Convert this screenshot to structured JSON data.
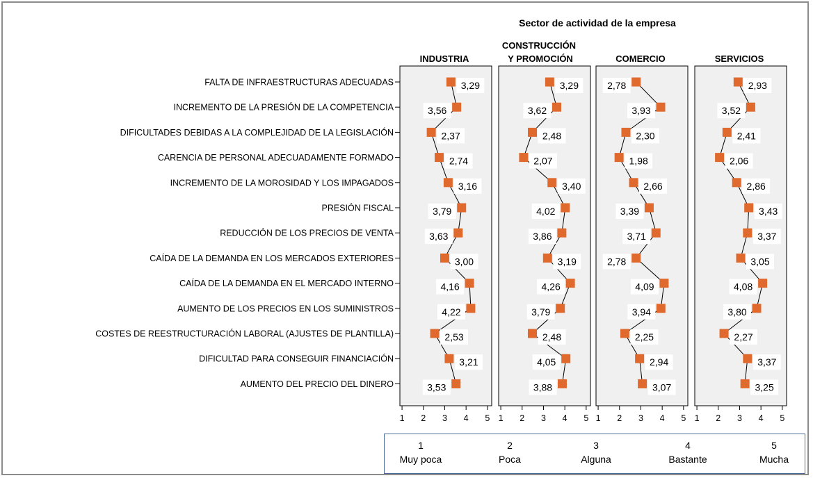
{
  "chart_data": {
    "type": "scatter",
    "title": "Sector de actividad de la empresa",
    "categories": [
      "FALTA DE INFRAESTRUCTURAS ADECUADAS",
      "INCREMENTO DE LA PRESIÓN DE LA COMPETENCIA",
      "DIFICULTADES DEBIDAS A LA COMPLEJIDAD DE LA LEGISLACIÓN",
      "CARENCIA DE PERSONAL ADECUADAMENTE FORMADO",
      "INCREMENTO DE LA MOROSIDAD Y LOS IMPAGADOS",
      "PRESIÓN FISCAL",
      "REDUCCIÓN DE LOS PRECIOS DE VENTA",
      "CAÍDA DE LA DEMANDA EN LOS MERCADOS EXTERIORES",
      "CAÍDA DE LA DEMANDA EN EL MERCADO INTERNO",
      "AUMENTO DE LOS PRECIOS EN LOS SUMINISTROS",
      "COSTES DE REESTRUCTURACIÓN LABORAL (AJUSTES DE PLANTILLA)",
      "DIFICULTAD PARA CONSEGUIR FINANCIACIÓN",
      "AUMENTO DEL PRECIO DEL DINERO"
    ],
    "panels": [
      {
        "name": "INDUSTRIA",
        "name_line1": "",
        "name_line2": "INDUSTRIA",
        "values": [
          3.29,
          3.56,
          2.37,
          2.74,
          3.16,
          3.79,
          3.63,
          3.0,
          4.16,
          4.22,
          2.53,
          3.21,
          3.53
        ],
        "labels": [
          "3,29",
          "3,56",
          "2,37",
          "2,74",
          "3,16",
          "3,79",
          "3,63",
          "3,00",
          "4,16",
          "4,22",
          "2,53",
          "3,21",
          "3,53"
        ],
        "label_side": [
          "r",
          "l",
          "r",
          "r",
          "r",
          "l",
          "l",
          "r",
          "l",
          "l",
          "r",
          "r",
          "l"
        ]
      },
      {
        "name": "CONSTRUCCIÓN Y PROMOCIÓN",
        "name_line1": "CONSTRUCCIÓN",
        "name_line2": "Y PROMOCIÓN",
        "values": [
          3.29,
          3.62,
          2.48,
          2.07,
          3.4,
          4.02,
          3.86,
          3.19,
          4.26,
          3.79,
          2.48,
          4.05,
          3.88
        ],
        "labels": [
          "3,29",
          "3,62",
          "2,48",
          "2,07",
          "3,40",
          "4,02",
          "3,86",
          "3,19",
          "4,26",
          "3,79",
          "2,48",
          "4,05",
          "3,88"
        ],
        "label_side": [
          "r",
          "l",
          "r",
          "r",
          "r",
          "l",
          "l",
          "r",
          "l",
          "l",
          "r",
          "l",
          "l"
        ]
      },
      {
        "name": "COMERCIO",
        "name_line1": "",
        "name_line2": "COMERCIO",
        "values": [
          2.78,
          3.93,
          2.3,
          1.98,
          2.66,
          3.39,
          3.71,
          2.78,
          4.09,
          3.94,
          2.25,
          2.94,
          3.07
        ],
        "labels": [
          "2,78",
          "3,93",
          "2,30",
          "1,98",
          "2,66",
          "3,39",
          "3,71",
          "2,78",
          "4,09",
          "3,94",
          "2,25",
          "2,94",
          "3,07"
        ],
        "label_side": [
          "l",
          "l",
          "r",
          "r",
          "r",
          "l",
          "l",
          "l",
          "l",
          "l",
          "r",
          "r",
          "r"
        ]
      },
      {
        "name": "SERVICIOS",
        "name_line1": "",
        "name_line2": "SERVICIOS",
        "values": [
          2.93,
          3.52,
          2.41,
          2.06,
          2.86,
          3.43,
          3.37,
          3.05,
          4.08,
          3.8,
          2.27,
          3.37,
          3.25
        ],
        "labels": [
          "2,93",
          "3,52",
          "2,41",
          "2,06",
          "2,86",
          "3,43",
          "3,37",
          "3,05",
          "4,08",
          "3,80",
          "2,27",
          "3,37",
          "3,25"
        ],
        "label_side": [
          "r",
          "l",
          "r",
          "r",
          "r",
          "r",
          "r",
          "r",
          "l",
          "l",
          "r",
          "r",
          "r"
        ]
      }
    ],
    "x_ticks": [
      "1",
      "2",
      "3",
      "4",
      "5"
    ],
    "xlim": [
      0.9,
      5.2
    ],
    "marker_color": "#e06a2e",
    "panel_background": "#f0f0f0",
    "legend": [
      {
        "num": "1",
        "label": "Muy poca"
      },
      {
        "num": "2",
        "label": "Poca"
      },
      {
        "num": "3",
        "label": "Alguna"
      },
      {
        "num": "4",
        "label": "Bastante"
      },
      {
        "num": "5",
        "label": "Mucha"
      }
    ]
  }
}
